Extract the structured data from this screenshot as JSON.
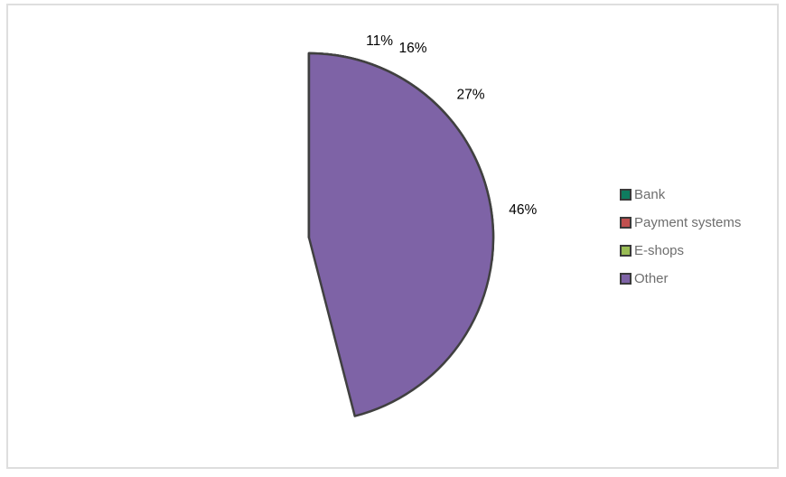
{
  "chart_data": {
    "type": "pie",
    "categories": [
      "Bank",
      "Payment systems",
      "E-shops",
      "Other"
    ],
    "values": [
      27,
      16,
      11,
      46
    ],
    "data_labels": [
      "27%",
      "16%",
      "11%",
      "46%"
    ],
    "colors": [
      "#0E7C5F",
      "#C0504F",
      "#99BC55",
      "#7E63A6"
    ],
    "slice_border_color": "#404040",
    "data_label_color": "#000000",
    "start_angle_deg": 0,
    "direction": "clockwise",
    "background": "#FFFFFF",
    "frame_border_color": "#DEDEDE",
    "legend": {
      "position": "right",
      "text_color": "#6E6E6E",
      "marker_border_color": "#3A3A3A",
      "entries": [
        {
          "label": "Bank",
          "color": "#0E7C5F"
        },
        {
          "label": "Payment systems",
          "color": "#C0504F"
        },
        {
          "label": "E-shops",
          "color": "#99BC55"
        },
        {
          "label": "Other",
          "color": "#7E63A6"
        }
      ]
    }
  }
}
